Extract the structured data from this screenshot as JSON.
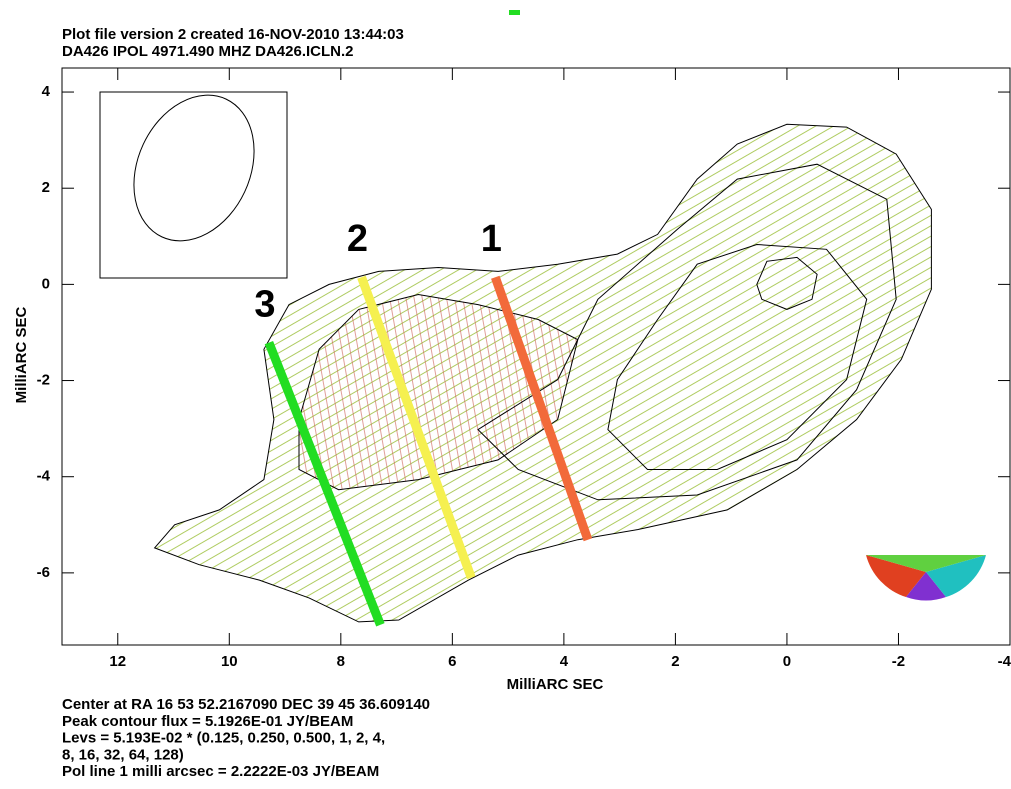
{
  "chart_data": {
    "type": "contour",
    "title": "Plot file version 2  created 16-NOV-2010 13:44:03",
    "subtitle": "DA426  IPOL  4971.490 MHZ  DA426.ICLN.2",
    "xlabel": "MilliARC SEC",
    "ylabel": "MilliARC SEC",
    "xlim": [
      13,
      -4
    ],
    "ylim": [
      -7.5,
      4.5
    ],
    "xticks": [
      12,
      10,
      8,
      6,
      4,
      2,
      0,
      -2,
      -4
    ],
    "yticks": [
      4,
      2,
      0,
      -2,
      -4,
      -6
    ],
    "grid": false,
    "contour_color": "#000000",
    "contours": [
      {
        "x": [
          11.34,
          10.98,
          10.18,
          9.38,
          9.2,
          9.38,
          8.93,
          8.21,
          7.32,
          6.25,
          5.18,
          4.11,
          3.04,
          2.32,
          1.61,
          0.89,
          0,
          -1.07,
          -1.96,
          -2.59,
          -2.59,
          -2.05,
          -1.25,
          -0.18,
          1.07,
          2.68,
          3.75,
          4.82,
          5.71,
          6.96,
          7.68,
          8.57,
          9.46,
          10.54
        ],
        "y": [
          -5.48,
          -5.0,
          -4.69,
          -4.06,
          -2.81,
          -1.35,
          -0.42,
          0,
          0.27,
          0.35,
          0.27,
          0.42,
          0.63,
          1.04,
          2.19,
          2.92,
          3.33,
          3.27,
          2.71,
          1.56,
          -0.1,
          -1.56,
          -2.81,
          -3.85,
          -4.69,
          -5.1,
          -5.31,
          -5.63,
          -6.15,
          -6.98,
          -7.02,
          -6.52,
          -6.15,
          -5.83
        ]
      },
      {
        "x": [
          4.11,
          3.39,
          1.96,
          0.89,
          -0.54,
          -1.79,
          -1.96,
          -1.25,
          -0.18,
          1.61,
          3.39,
          4.82,
          5.54
        ],
        "y": [
          -1.98,
          -0.31,
          1.15,
          2.19,
          2.5,
          1.77,
          -0.31,
          -2.19,
          -3.65,
          -4.38,
          -4.48,
          -3.85,
          -3.02
        ]
      },
      {
        "x": [
          3.04,
          2.32,
          1.61,
          0.54,
          -0.71,
          -1.43,
          -1.07,
          0,
          1.25,
          2.5,
          3.21
        ],
        "y": [
          -1.98,
          -0.73,
          0.42,
          0.83,
          0.73,
          -0.31,
          -1.98,
          -3.23,
          -3.85,
          -3.85,
          -3.02
        ]
      },
      {
        "x": [
          0.54,
          0.36,
          -0.18,
          -0.54,
          -0.45,
          0,
          0.45
        ],
        "y": [
          0,
          0.48,
          0.56,
          0.21,
          -0.31,
          -0.52,
          -0.31
        ]
      },
      {
        "x": [
          8.75,
          8.39,
          7.68,
          6.61,
          5.54,
          4.46,
          3.75,
          4.11,
          5.18,
          6.61,
          8.04,
          8.75
        ],
        "y": [
          -2.81,
          -1.35,
          -0.52,
          -0.21,
          -0.42,
          -0.73,
          -1.15,
          -2.81,
          -3.65,
          -4.06,
          -4.27,
          -3.85
        ]
      }
    ],
    "cuts": [
      {
        "label": "1",
        "color": "#f26a3a",
        "x": [
          5.23,
          3.57
        ],
        "y": [
          0.15,
          -5.31
        ]
      },
      {
        "label": "2",
        "color": "#f5f050",
        "x": [
          7.63,
          5.66
        ],
        "y": [
          0.15,
          -6.1
        ]
      },
      {
        "label": "3",
        "color": "#22dd22",
        "x": [
          9.29,
          7.29
        ],
        "y": [
          -1.21,
          -7.08
        ]
      }
    ],
    "notes": [
      "Center at RA 16 53 52.2167090  DEC 39 45 36.609140",
      "Peak contour flux =  5.1926E-01 JY/BEAM",
      "Levs = 5.193E-02 * (0.125, 0.250, 0.500, 1, 2, 4,",
      "8, 16, 32, 64, 128)",
      "Pol line 1 milli arcsec =  2.2222E-03 JY/BEAM"
    ]
  }
}
